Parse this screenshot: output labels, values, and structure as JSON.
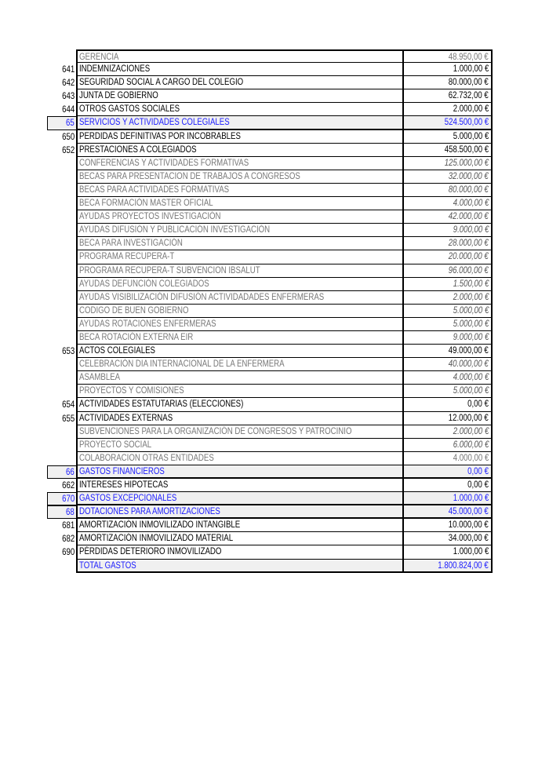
{
  "colors": {
    "group_text": "#1a1aff",
    "group_bg": "#f0f0f0",
    "sub_text": "#777777"
  },
  "rows": [
    {
      "code": "",
      "desc": "GERENCIA",
      "amount": "48.950,00 €",
      "type": "sub",
      "italic": false
    },
    {
      "code": "641",
      "desc": "INDEMNIZACIONES",
      "amount": "1.000,00 €",
      "type": "normal"
    },
    {
      "code": "642",
      "desc": "SEGURIDAD SOCIAL A CARGO DEL COLEGIO",
      "amount": "80.000,00 €",
      "type": "normal"
    },
    {
      "code": "643",
      "desc": "JUNTA DE GOBIERNO",
      "amount": "62.732,00 €",
      "type": "normal"
    },
    {
      "code": "644",
      "desc": "OTROS GASTOS SOCIALES",
      "amount": "2.000,00 €",
      "type": "normal"
    },
    {
      "code": "65",
      "desc": "SERVICIOS Y ACTIVIDADES COLEGIALES",
      "amount": "524.500,00 €",
      "type": "group"
    },
    {
      "code": "650",
      "desc": "PERDIDAS DEFINITIVAS POR INCOBRABLES",
      "amount": "5.000,00 €",
      "type": "normal"
    },
    {
      "code": "652",
      "desc": "PRESTACIONES A COLEGIADOS",
      "amount": "458.500,00 €",
      "type": "normal"
    },
    {
      "code": "",
      "desc": "CONFERENCIAS Y ACTIVIDADES FORMATIVAS",
      "amount": "125.000,00 €",
      "type": "sub",
      "italic": true
    },
    {
      "code": "",
      "desc": "BECAS PARA PRESENTACION DE TRABAJOS A CONGRESOS",
      "amount": "32.000,00 €",
      "type": "sub",
      "italic": true
    },
    {
      "code": "",
      "desc": "BECAS PARA ACTIVIDADES FORMATIVAS",
      "amount": "80.000,00 €",
      "type": "sub",
      "italic": true
    },
    {
      "code": "",
      "desc": "BECA FORMACIÓN MASTER OFICIAL",
      "amount": "4.000,00 €",
      "type": "sub",
      "italic": true
    },
    {
      "code": "",
      "desc": "AYUDAS PROYECTOS INVESTIGACIÓN",
      "amount": "42.000,00 €",
      "type": "sub",
      "italic": true
    },
    {
      "code": "",
      "desc": "AYUDAS DIFUSIÓN Y PUBLICACIÓN INVESTIGACIÓN",
      "amount": "9.000,00 €",
      "type": "sub",
      "italic": true
    },
    {
      "code": "",
      "desc": "BECA PARA INVESTIGACIÓN",
      "amount": "28.000,00 €",
      "type": "sub",
      "italic": true
    },
    {
      "code": "",
      "desc": "PROGRAMA RECUPERA-T",
      "amount": "20.000,00 €",
      "type": "sub",
      "italic": true
    },
    {
      "code": "",
      "desc": "PROGRAMA RECUPERA-T SUBVENCION IBSALUT",
      "amount": "96.000,00 €",
      "type": "sub",
      "italic": true
    },
    {
      "code": "",
      "desc": "AYUDAS DEFUNCIÓN COLEGIADOS",
      "amount": "1.500,00 €",
      "type": "sub",
      "italic": true
    },
    {
      "code": "",
      "desc": "AYUDAS VISIBILIZACIÓN DIFUSIÓN ACTIVIDADADES ENFERMERAS",
      "amount": "2.000,00 €",
      "type": "sub",
      "italic": true
    },
    {
      "code": "",
      "desc": "CODIGO DE BUEN GOBIERNO",
      "amount": "5.000,00 €",
      "type": "sub",
      "italic": true
    },
    {
      "code": "",
      "desc": "AYUDAS ROTACIONES ENFERMERAS",
      "amount": "5.000,00 €",
      "type": "sub",
      "italic": true
    },
    {
      "code": "",
      "desc": "BECA ROTACIÓN EXTERNA EIR",
      "amount": "9.000,00 €",
      "type": "sub",
      "italic": true
    },
    {
      "code": "653",
      "desc": "ACTOS COLEGIALES",
      "amount": "49.000,00 €",
      "type": "normal"
    },
    {
      "code": "",
      "desc": "CELEBRACIÓN DIA INTERNACIONAL DE LA ENFERMERA",
      "amount": "40.000,00 €",
      "type": "sub",
      "italic": true
    },
    {
      "code": "",
      "desc": "ASAMBLEA",
      "amount": "4.000,00 €",
      "type": "sub",
      "italic": true
    },
    {
      "code": "",
      "desc": "PROYECTOS Y COMISIONES",
      "amount": "5.000,00 €",
      "type": "sub",
      "italic": true
    },
    {
      "code": "654",
      "desc": "ACTIVIDADES ESTATUTARIAS (ELECCIONES)",
      "amount": "0,00 €",
      "type": "normal"
    },
    {
      "code": "655",
      "desc": "ACTIVIDADES EXTERNAS",
      "amount": "12.000,00 €",
      "type": "normal"
    },
    {
      "code": "",
      "desc": "SUBVENCIONES PARA LA ORGANIZACIÓN DE CONGRESOS Y PATROCINIO",
      "amount": "2.000,00 €",
      "type": "sub",
      "italic": true
    },
    {
      "code": "",
      "desc": "PROYECTO SOCIAL",
      "amount": "6.000,00 €",
      "type": "sub",
      "italic": true
    },
    {
      "code": "",
      "desc": "COLABORACION OTRAS ENTIDADES",
      "amount": "4.000,00 €",
      "type": "sub",
      "italic": false
    },
    {
      "code": "66",
      "desc": "GASTOS FINANCIEROS",
      "amount": "0,00 €",
      "type": "group"
    },
    {
      "code": "662",
      "desc": "INTERESES HIPOTECAS",
      "amount": "0,00 €",
      "type": "normal"
    },
    {
      "code": "670",
      "desc": "GASTOS EXCEPCIONALES",
      "amount": "1.000,00 €",
      "type": "group"
    },
    {
      "code": "68",
      "desc": "DOTACIONES PARA AMORTIZACIONES",
      "amount": "45.000,00 €",
      "type": "group"
    },
    {
      "code": "681",
      "desc": "AMORTIZACIÓN INMOVILIZADO INTANGIBLE",
      "amount": "10.000,00 €",
      "type": "normal"
    },
    {
      "code": "682",
      "desc": "AMORTIZACIÓN INMOVILIZADO MATERIAL",
      "amount": "34.000,00 €",
      "type": "normal"
    },
    {
      "code": "690",
      "desc": "PÉRDIDAS DETERIORO INMOVILIZADO",
      "amount": "1.000,00 €",
      "type": "normal"
    },
    {
      "code": "",
      "desc": "TOTAL GASTOS",
      "amount": "1.800.824,00 €",
      "type": "total"
    }
  ]
}
